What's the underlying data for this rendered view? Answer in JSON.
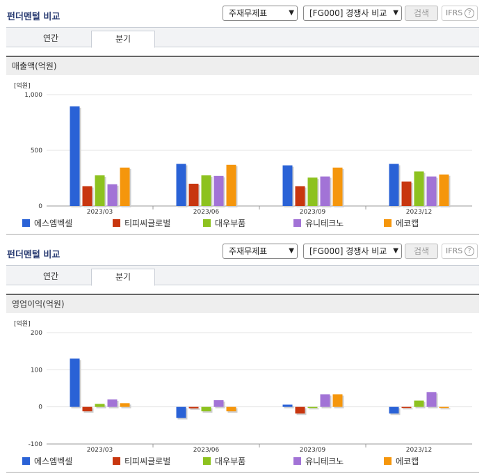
{
  "panels": [
    {
      "title": "펀더멘털 비교",
      "select_report": "주재무제표",
      "select_compare": "[FG000] 경쟁사 비교",
      "search_label": "검색",
      "ifrs_label": "IFRS",
      "tabs": [
        {
          "label": "연간"
        },
        {
          "label": "분기"
        }
      ],
      "active_tab": "분기",
      "section": "매출액(억원)"
    },
    {
      "title": "펀더멘털 비교",
      "select_report": "주재무제표",
      "select_compare": "[FG000] 경쟁사 비교",
      "search_label": "검색",
      "ifrs_label": "IFRS",
      "tabs": [
        {
          "label": "연간"
        },
        {
          "label": "분기"
        }
      ],
      "active_tab": "분기",
      "section": "영업이익(억원)"
    }
  ],
  "colors": {
    "에스엠벡셀": "#2a62d6",
    "티피씨글로벌": "#c8360f",
    "대우부품": "#8dc21f",
    "유니테크노": "#a273d6",
    "에코캡": "#f5960c"
  },
  "chart_data": [
    {
      "type": "bar",
      "unit_label": "[억원]",
      "categories": [
        "2023/03",
        "2023/06",
        "2023/09",
        "2023/12"
      ],
      "yticks": [
        "1,000",
        "500",
        "0"
      ],
      "ylim": [
        0,
        1000
      ],
      "series": [
        {
          "name": "에스엠벡셀",
          "values": [
            895,
            378,
            365,
            378
          ]
        },
        {
          "name": "티피씨글로벌",
          "values": [
            178,
            200,
            178,
            220
          ]
        },
        {
          "name": "대우부품",
          "values": [
            275,
            275,
            255,
            310
          ]
        },
        {
          "name": "유니테크노",
          "values": [
            195,
            270,
            265,
            265
          ]
        },
        {
          "name": "에코캡",
          "values": [
            345,
            370,
            345,
            283
          ]
        }
      ],
      "legend": "bottom"
    },
    {
      "type": "bar",
      "unit_label": "[억원]",
      "categories": [
        "2023/03",
        "2023/06",
        "2023/09",
        "2023/12"
      ],
      "yticks": [
        "200",
        "100",
        "0",
        "-100"
      ],
      "ylim": [
        -100,
        200
      ],
      "series": [
        {
          "name": "에스엠벡셀",
          "values": [
            130,
            -30,
            6,
            -18
          ]
        },
        {
          "name": "티피씨글로벌",
          "values": [
            -12,
            -4,
            -18,
            -3
          ]
        },
        {
          "name": "대우부품",
          "values": [
            8,
            -12,
            -3,
            17
          ]
        },
        {
          "name": "유니테크노",
          "values": [
            20,
            18,
            34,
            40
          ]
        },
        {
          "name": "에코캡",
          "values": [
            10,
            -12,
            34,
            -3
          ]
        }
      ],
      "legend": "bottom"
    }
  ]
}
